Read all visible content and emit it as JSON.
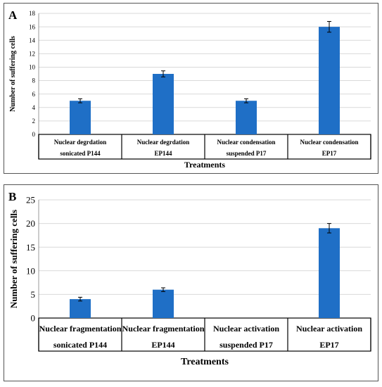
{
  "chart_data": [
    {
      "panel_label": "A",
      "type": "bar",
      "categories": [
        [
          "Nuclear degrdation",
          "sonicated P144"
        ],
        [
          "Nuclear degrdation",
          "EP144"
        ],
        [
          "Nuclear condensation",
          "suspended P17"
        ],
        [
          "Nuclear condensation",
          "EP17"
        ]
      ],
      "values": [
        5,
        9,
        5,
        16
      ],
      "errors": [
        0.3,
        0.45,
        0.3,
        0.8
      ],
      "xlabel": "Treatments",
      "ylabel": "Number of suffering cells",
      "ylim": [
        0,
        18
      ],
      "yticks": [
        0,
        2,
        4,
        6,
        8,
        10,
        12,
        14,
        16,
        18
      ],
      "grid": true,
      "bar_color": "#1f6fc6"
    },
    {
      "panel_label": "B",
      "type": "bar",
      "categories": [
        [
          "Nuclear fragmentation",
          "sonicated P144"
        ],
        [
          "Nuclear fragmentation",
          "EP144"
        ],
        [
          "Nuclear activation",
          "suspended P17"
        ],
        [
          "Nuclear activation",
          "EP17"
        ]
      ],
      "values": [
        4,
        6,
        0,
        19
      ],
      "errors": [
        0.4,
        0.4,
        0,
        1.0
      ],
      "xlabel": "Treatments",
      "ylabel": "Number of suffering cells",
      "ylim": [
        0,
        25
      ],
      "yticks": [
        0,
        5,
        10,
        15,
        20,
        25
      ],
      "grid": true,
      "bar_color": "#1f6fc6"
    }
  ]
}
